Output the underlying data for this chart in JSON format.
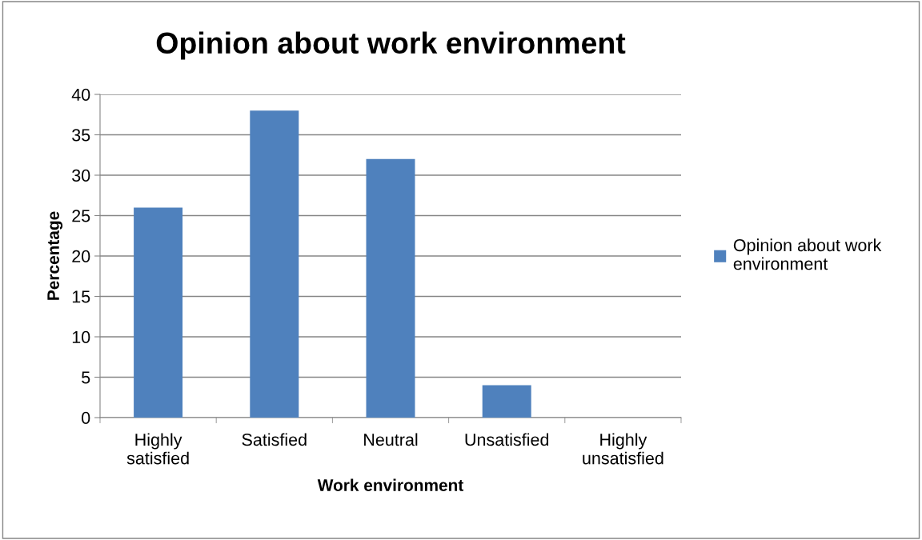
{
  "chart_data": {
    "type": "bar",
    "title": "Opinion about work environment",
    "xlabel": "Work environment",
    "ylabel": "Percentage",
    "categories": [
      "Highly\nsatisfied",
      "Satisfied",
      "Neutral",
      "Unsatisfied",
      "Highly\nunsatisfied"
    ],
    "series": [
      {
        "name": "Opinion about work environment",
        "color": "#4f81bd",
        "values": [
          26,
          38,
          32,
          4,
          0
        ]
      }
    ],
    "ylim": [
      0,
      40
    ],
    "yticks": [
      0,
      5,
      10,
      15,
      20,
      25,
      30,
      35,
      40
    ],
    "grid": "y",
    "legend": "right"
  }
}
